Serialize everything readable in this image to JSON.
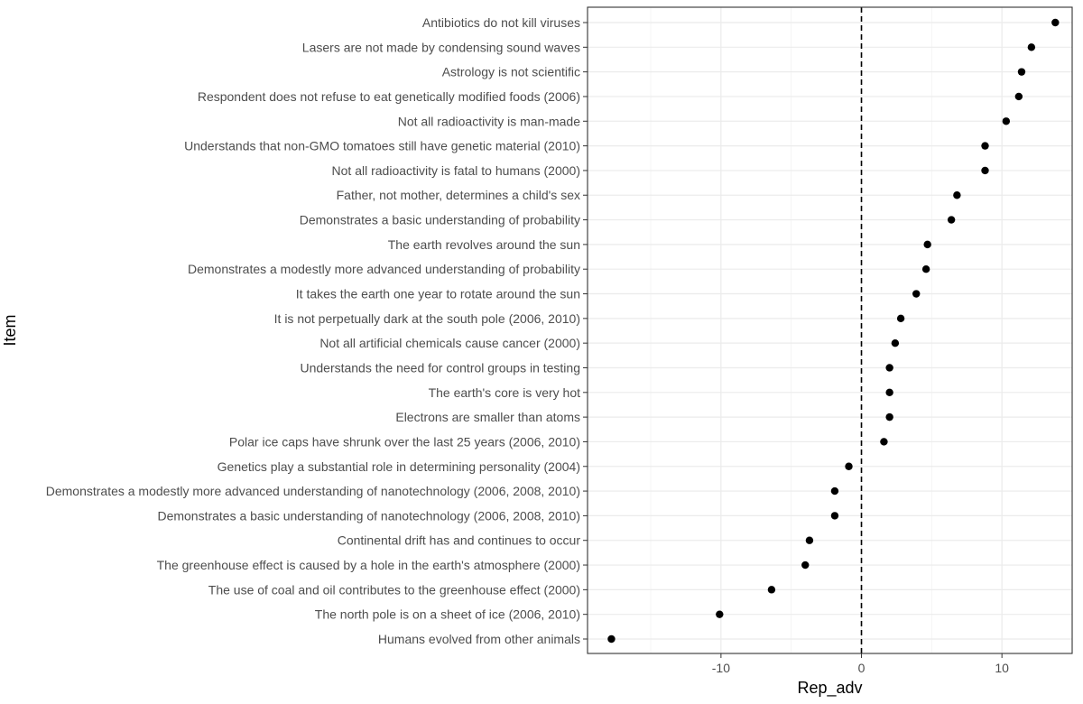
{
  "chart_data": {
    "type": "scatter",
    "title": "",
    "xlabel": "Rep_adv",
    "ylabel": "Item",
    "xlim": [
      -19.5,
      15
    ],
    "xticks": [
      -10,
      0,
      10
    ],
    "reference_line": {
      "x": 0,
      "style": "dashed"
    },
    "grid": true,
    "points": [
      {
        "label": "Humans evolved from other animals",
        "value": -17.8
      },
      {
        "label": "The north pole is on a sheet of ice (2006, 2010)",
        "value": -10.1
      },
      {
        "label": "The use of coal and oil contributes to the greenhouse effect (2000)",
        "value": -6.4
      },
      {
        "label": "The greenhouse effect is caused by a hole in the earth's atmosphere (2000)",
        "value": -4.0
      },
      {
        "label": "Continental drift has and continues to occur",
        "value": -3.7
      },
      {
        "label": "Demonstrates a basic understanding of nanotechnology (2006, 2008, 2010)",
        "value": -1.9
      },
      {
        "label": "Demonstrates a modestly more advanced understanding of nanotechnology (2006, 2008, 2010)",
        "value": -1.9
      },
      {
        "label": "Genetics play a substantial role in determining personality (2004)",
        "value": -0.9
      },
      {
        "label": "Polar ice caps have shrunk over the last 25 years (2006, 2010)",
        "value": 1.6
      },
      {
        "label": "Electrons are smaller than atoms",
        "value": 2.0
      },
      {
        "label": "The earth's core is very hot",
        "value": 2.0
      },
      {
        "label": "Understands the need for control groups in testing",
        "value": 2.0
      },
      {
        "label": "Not all artificial chemicals cause cancer (2000)",
        "value": 2.4
      },
      {
        "label": "It is not perpetually dark at the south pole (2006, 2010)",
        "value": 2.8
      },
      {
        "label": "It takes the earth one year to rotate around the sun",
        "value": 3.9
      },
      {
        "label": "Demonstrates a modestly more advanced understanding of probability",
        "value": 4.6
      },
      {
        "label": "The earth revolves around the sun",
        "value": 4.7
      },
      {
        "label": "Demonstrates a basic understanding of probability",
        "value": 6.4
      },
      {
        "label": "Father, not mother, determines a child's sex",
        "value": 6.8
      },
      {
        "label": "Not all radioactivity is fatal to humans (2000)",
        "value": 8.8
      },
      {
        "label": "Understands that non-GMO tomatoes still have genetic material (2010)",
        "value": 8.8
      },
      {
        "label": "Not all radioactivity is man-made",
        "value": 10.3
      },
      {
        "label": "Respondent does not refuse to eat genetically modified foods (2006)",
        "value": 11.2
      },
      {
        "label": "Astrology is not scientific",
        "value": 11.4
      },
      {
        "label": "Lasers are not made by condensing sound waves",
        "value": 12.1
      },
      {
        "label": "Antibiotics do not kill viruses",
        "value": 13.8
      }
    ]
  }
}
